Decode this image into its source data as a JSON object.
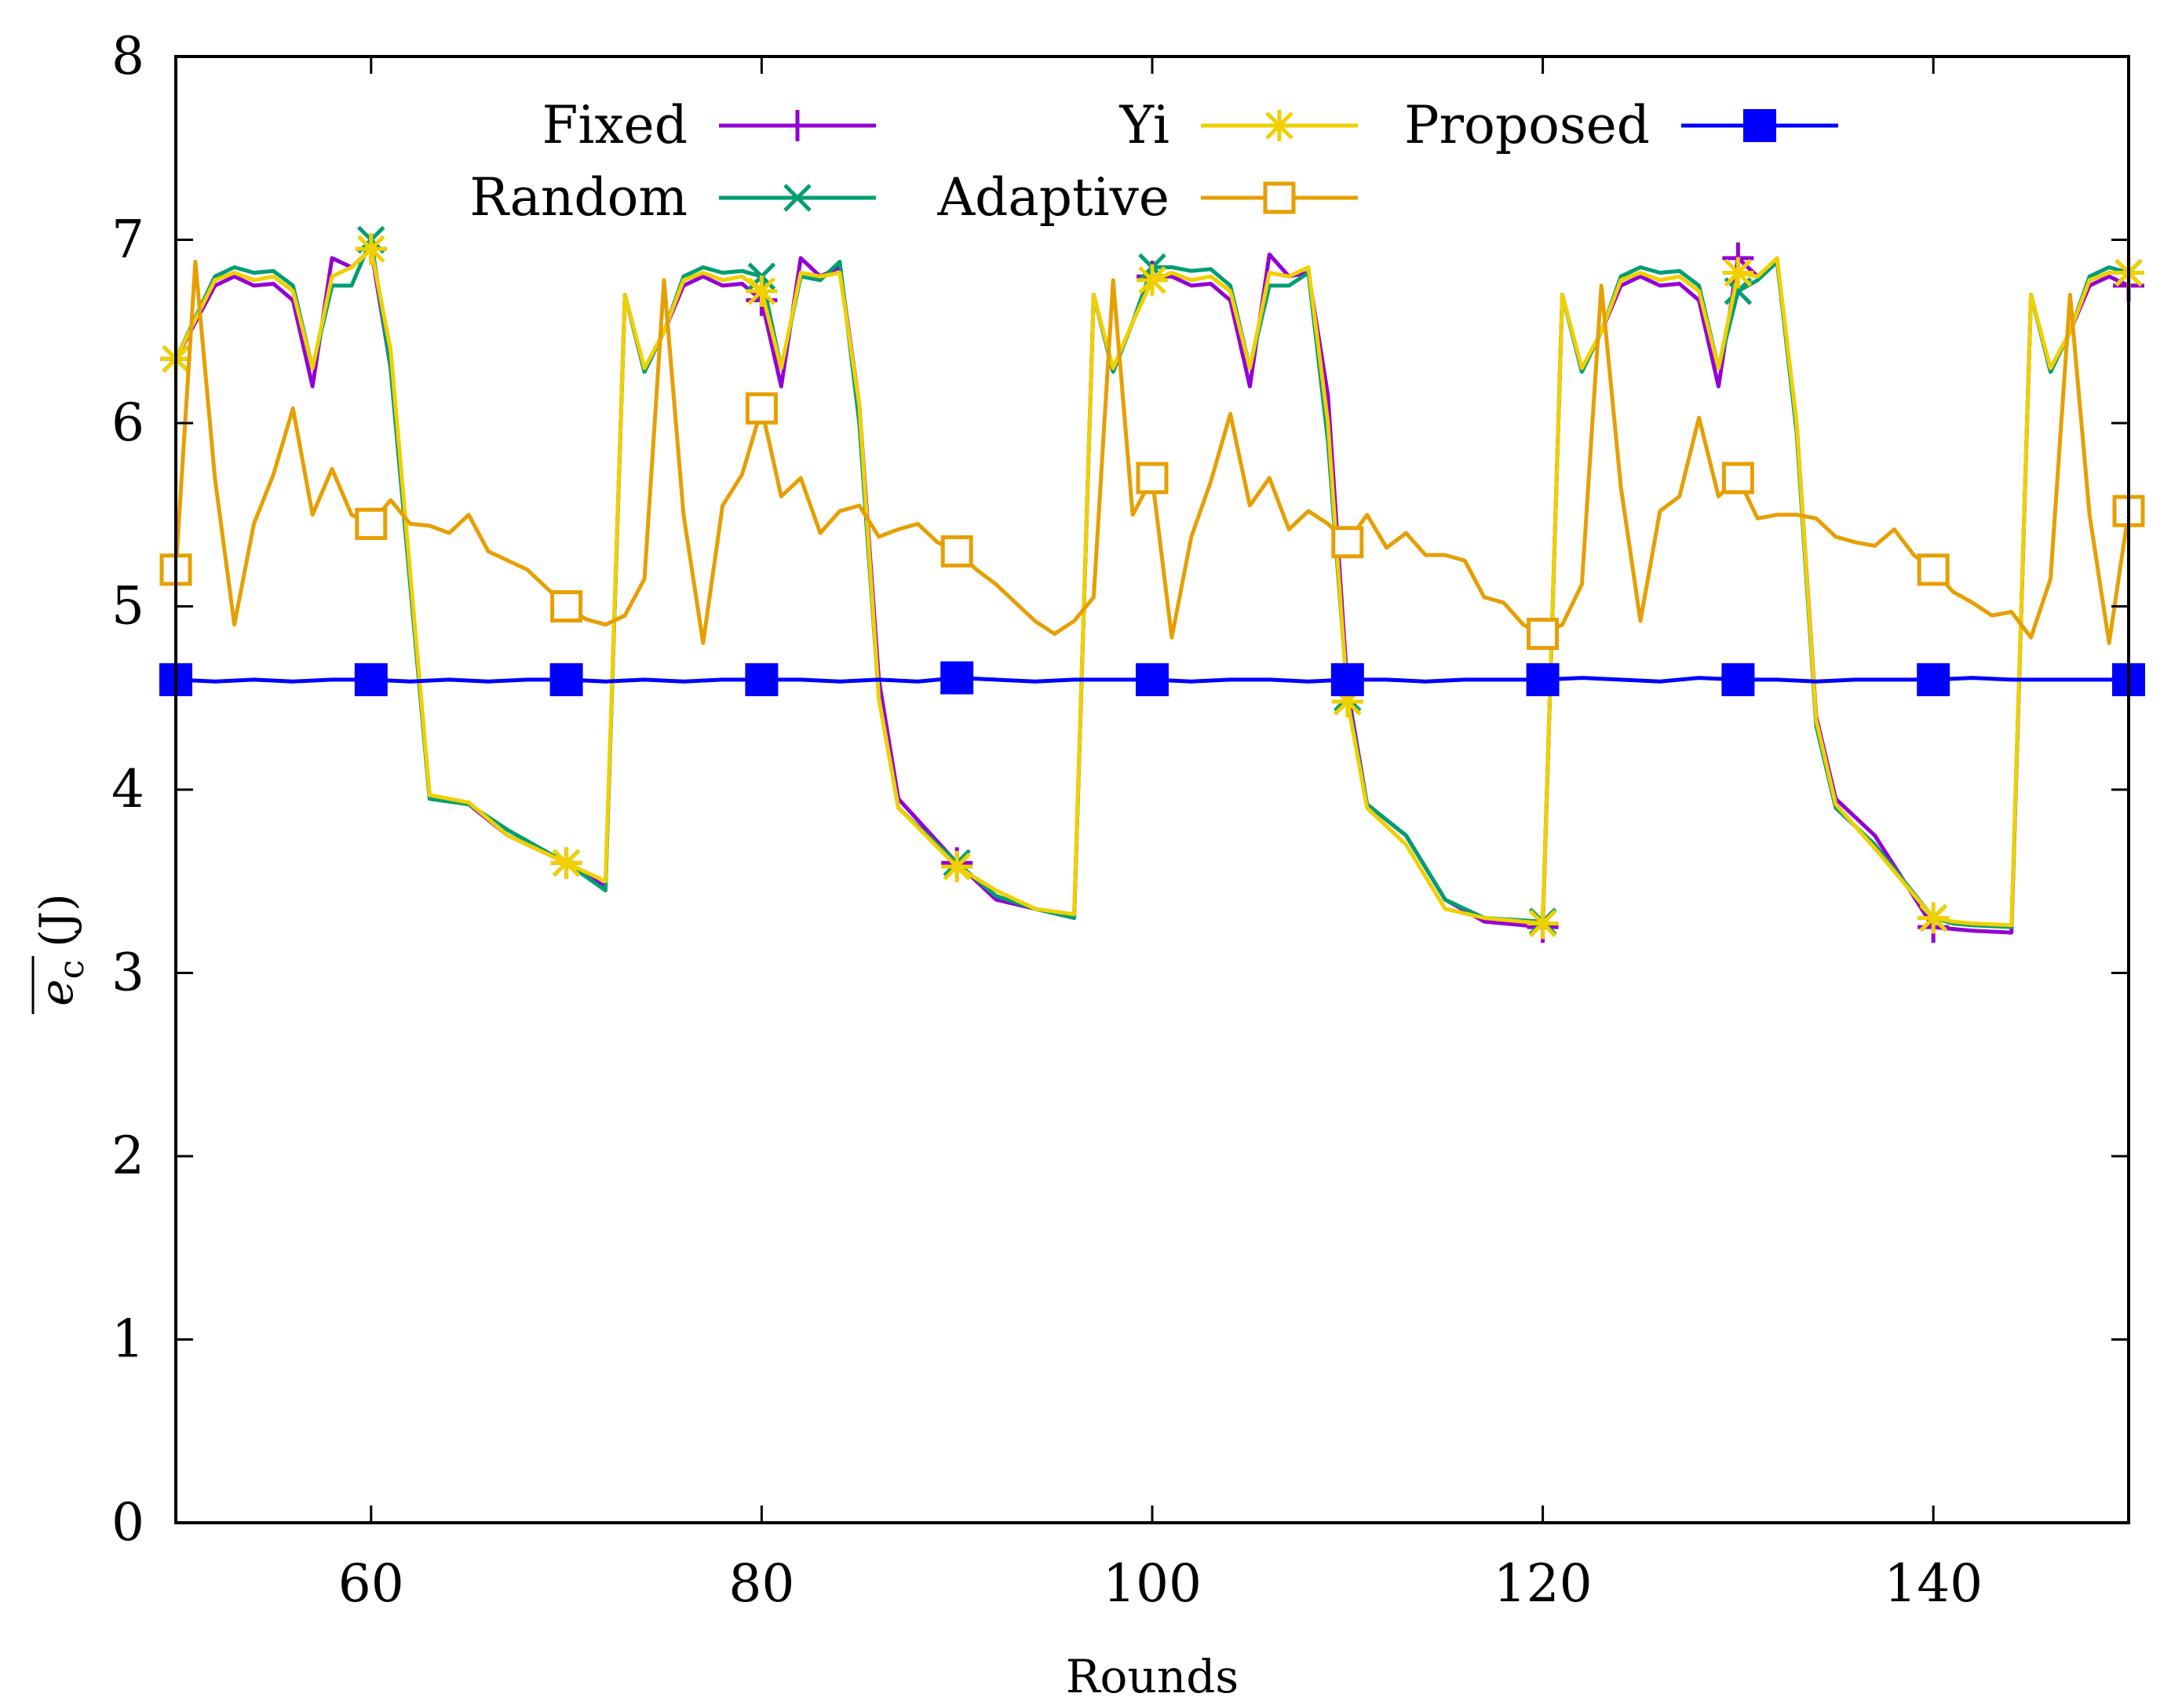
{
  "chart_data": {
    "type": "line",
    "xlabel": "Rounds",
    "ylabel_main": "e",
    "ylabel_sub": "c",
    "ylabel_unit": "(J)",
    "xlim": [
      50,
      150
    ],
    "ylim": [
      0,
      8
    ],
    "xticks": [
      60,
      80,
      100,
      120,
      140
    ],
    "yticks": [
      0,
      1,
      2,
      3,
      4,
      5,
      6,
      7,
      8
    ],
    "grid": false,
    "legend_position": "top",
    "series": [
      {
        "name": "Fixed",
        "color": "#9400d3",
        "marker": "plus",
        "x": [
          50,
          52,
          53,
          54,
          55,
          56,
          57,
          58,
          59,
          60,
          61,
          63,
          65,
          67,
          70,
          72,
          73,
          74,
          75,
          76,
          77,
          78,
          79,
          80,
          81,
          82,
          83,
          84,
          85,
          86,
          87,
          90,
          92,
          94,
          96,
          97,
          98,
          99,
          100,
          101,
          102,
          103,
          104,
          105,
          106,
          107,
          108,
          109,
          110,
          111,
          113,
          115,
          117,
          120,
          121,
          122,
          123,
          124,
          125,
          126,
          127,
          128,
          129,
          130,
          131,
          132,
          133,
          134,
          135,
          137,
          140,
          141,
          142,
          144,
          145,
          146,
          147,
          148,
          149,
          150
        ],
        "y": [
          6.35,
          6.75,
          6.8,
          6.75,
          6.76,
          6.67,
          6.2,
          6.9,
          6.85,
          6.95,
          6.3,
          3.95,
          3.92,
          3.75,
          3.6,
          3.47,
          6.7,
          6.28,
          6.5,
          6.75,
          6.8,
          6.75,
          6.76,
          6.67,
          6.2,
          6.9,
          6.8,
          6.85,
          6.1,
          4.6,
          3.95,
          3.6,
          3.4,
          3.35,
          3.3,
          6.7,
          6.28,
          6.55,
          6.8,
          6.8,
          6.75,
          6.76,
          6.67,
          6.2,
          6.92,
          6.8,
          6.82,
          6.15,
          4.55,
          3.92,
          3.75,
          3.4,
          3.28,
          3.25,
          6.7,
          6.28,
          6.5,
          6.75,
          6.8,
          6.75,
          6.76,
          6.67,
          6.2,
          6.9,
          6.8,
          6.88,
          6.0,
          4.4,
          3.95,
          3.75,
          3.25,
          3.24,
          3.23,
          3.22,
          6.7,
          6.28,
          6.5,
          6.75,
          6.8,
          6.75
        ]
      },
      {
        "name": "Random",
        "color": "#009e73",
        "marker": "cross",
        "x": [
          50,
          52,
          53,
          54,
          55,
          56,
          57,
          58,
          59,
          60,
          61,
          63,
          65,
          67,
          70,
          72,
          73,
          74,
          75,
          76,
          77,
          78,
          79,
          80,
          81,
          82,
          83,
          84,
          85,
          86,
          87,
          90,
          92,
          94,
          96,
          97,
          98,
          99,
          100,
          101,
          102,
          103,
          104,
          105,
          106,
          107,
          108,
          109,
          110,
          111,
          113,
          115,
          117,
          120,
          121,
          122,
          123,
          124,
          125,
          126,
          127,
          128,
          129,
          130,
          131,
          132,
          133,
          134,
          135,
          137,
          140,
          141,
          142,
          144,
          145,
          146,
          147,
          148,
          149,
          150
        ],
        "y": [
          6.35,
          6.8,
          6.85,
          6.82,
          6.83,
          6.75,
          6.3,
          6.75,
          6.75,
          7.0,
          6.3,
          3.95,
          3.92,
          3.78,
          3.6,
          3.45,
          6.7,
          6.28,
          6.5,
          6.8,
          6.85,
          6.82,
          6.83,
          6.8,
          6.3,
          6.8,
          6.78,
          6.88,
          6.0,
          4.5,
          3.9,
          3.6,
          3.42,
          3.35,
          3.3,
          6.7,
          6.28,
          6.55,
          6.85,
          6.85,
          6.83,
          6.84,
          6.75,
          6.3,
          6.75,
          6.75,
          6.82,
          5.9,
          4.5,
          3.92,
          3.75,
          3.4,
          3.3,
          3.28,
          6.7,
          6.28,
          6.5,
          6.8,
          6.85,
          6.82,
          6.83,
          6.75,
          6.3,
          6.72,
          6.78,
          6.88,
          5.95,
          4.35,
          3.9,
          3.7,
          3.3,
          3.27,
          3.26,
          3.25,
          6.7,
          6.28,
          6.5,
          6.8,
          6.85,
          6.82
        ]
      },
      {
        "name": "Yi",
        "color": "#f0d000",
        "marker": "star",
        "x": [
          50,
          52,
          53,
          54,
          55,
          56,
          57,
          58,
          59,
          60,
          61,
          63,
          65,
          67,
          70,
          72,
          73,
          74,
          75,
          76,
          77,
          78,
          79,
          80,
          81,
          82,
          83,
          84,
          85,
          86,
          87,
          90,
          92,
          94,
          96,
          97,
          98,
          99,
          100,
          101,
          102,
          103,
          104,
          105,
          106,
          107,
          108,
          109,
          110,
          111,
          113,
          115,
          117,
          120,
          121,
          122,
          123,
          124,
          125,
          126,
          127,
          128,
          129,
          130,
          131,
          132,
          133,
          134,
          135,
          137,
          140,
          141,
          142,
          144,
          145,
          146,
          147,
          148,
          149,
          150
        ],
        "y": [
          6.35,
          6.78,
          6.82,
          6.78,
          6.8,
          6.72,
          6.3,
          6.8,
          6.85,
          6.95,
          6.4,
          3.97,
          3.93,
          3.75,
          3.6,
          3.5,
          6.7,
          6.3,
          6.5,
          6.78,
          6.82,
          6.78,
          6.8,
          6.72,
          6.3,
          6.82,
          6.8,
          6.82,
          6.1,
          4.5,
          3.9,
          3.58,
          3.45,
          3.35,
          3.32,
          6.7,
          6.3,
          6.55,
          6.78,
          6.82,
          6.78,
          6.8,
          6.72,
          6.3,
          6.82,
          6.8,
          6.85,
          6.0,
          4.48,
          3.9,
          3.7,
          3.35,
          3.3,
          3.27,
          6.7,
          6.3,
          6.5,
          6.78,
          6.82,
          6.78,
          6.8,
          6.72,
          6.3,
          6.82,
          6.8,
          6.9,
          6.0,
          4.38,
          3.92,
          3.68,
          3.3,
          3.28,
          3.27,
          3.26,
          6.7,
          6.3,
          6.5,
          6.78,
          6.82,
          6.82
        ]
      },
      {
        "name": "Adaptive",
        "color": "#e69f00",
        "marker": "square-open",
        "x": [
          50,
          51,
          52,
          53,
          54,
          55,
          56,
          57,
          58,
          59,
          60,
          61,
          62,
          63,
          64,
          65,
          66,
          67,
          68,
          69,
          70,
          71,
          72,
          73,
          74,
          75,
          76,
          77,
          78,
          79,
          80,
          81,
          82,
          83,
          84,
          85,
          86,
          87,
          88,
          89,
          90,
          91,
          92,
          93,
          94,
          95,
          96,
          97,
          98,
          99,
          100,
          101,
          102,
          103,
          104,
          105,
          106,
          107,
          108,
          109,
          110,
          111,
          112,
          113,
          114,
          115,
          116,
          117,
          118,
          119,
          120,
          121,
          122,
          123,
          124,
          125,
          126,
          127,
          128,
          129,
          130,
          131,
          132,
          133,
          134,
          135,
          136,
          137,
          138,
          139,
          140,
          141,
          142,
          143,
          144,
          145,
          146,
          147,
          148,
          149,
          150
        ],
        "y": [
          5.2,
          6.88,
          5.7,
          4.9,
          5.45,
          5.72,
          6.08,
          5.5,
          5.75,
          5.5,
          5.45,
          5.58,
          5.45,
          5.44,
          5.4,
          5.5,
          5.3,
          5.25,
          5.2,
          5.1,
          5.0,
          4.93,
          4.9,
          4.95,
          5.15,
          6.78,
          5.5,
          4.8,
          5.55,
          5.72,
          6.08,
          5.6,
          5.7,
          5.4,
          5.52,
          5.55,
          5.38,
          5.42,
          5.45,
          5.35,
          5.3,
          5.2,
          5.12,
          5.02,
          4.92,
          4.85,
          4.92,
          5.05,
          6.78,
          5.5,
          5.7,
          4.83,
          5.38,
          5.68,
          6.05,
          5.55,
          5.7,
          5.42,
          5.52,
          5.45,
          5.35,
          5.5,
          5.32,
          5.4,
          5.28,
          5.28,
          5.25,
          5.05,
          5.02,
          4.9,
          4.85,
          4.9,
          5.12,
          6.75,
          5.65,
          4.92,
          5.52,
          5.6,
          6.03,
          5.6,
          5.7,
          5.48,
          5.5,
          5.5,
          5.48,
          5.38,
          5.35,
          5.33,
          5.42,
          5.28,
          5.2,
          5.08,
          5.02,
          4.95,
          4.97,
          4.83,
          5.15,
          6.7,
          5.5,
          4.8,
          5.52
        ]
      },
      {
        "name": "Proposed",
        "color": "#0000ff",
        "marker": "square-filled",
        "x": [
          50,
          52,
          54,
          56,
          58,
          60,
          62,
          64,
          66,
          68,
          70,
          72,
          74,
          76,
          78,
          80,
          82,
          84,
          86,
          88,
          90,
          92,
          94,
          96,
          98,
          100,
          102,
          104,
          106,
          108,
          110,
          112,
          114,
          116,
          118,
          120,
          122,
          124,
          126,
          128,
          130,
          132,
          134,
          136,
          138,
          140,
          142,
          144,
          146,
          148,
          150
        ],
        "y": [
          4.6,
          4.59,
          4.6,
          4.59,
          4.6,
          4.6,
          4.59,
          4.6,
          4.59,
          4.6,
          4.6,
          4.59,
          4.6,
          4.59,
          4.6,
          4.6,
          4.6,
          4.59,
          4.6,
          4.59,
          4.61,
          4.6,
          4.59,
          4.6,
          4.6,
          4.6,
          4.59,
          4.6,
          4.6,
          4.59,
          4.6,
          4.6,
          4.59,
          4.6,
          4.6,
          4.6,
          4.61,
          4.6,
          4.59,
          4.61,
          4.6,
          4.6,
          4.59,
          4.6,
          4.6,
          4.6,
          4.61,
          4.6,
          4.6,
          4.6,
          4.6
        ]
      }
    ]
  }
}
